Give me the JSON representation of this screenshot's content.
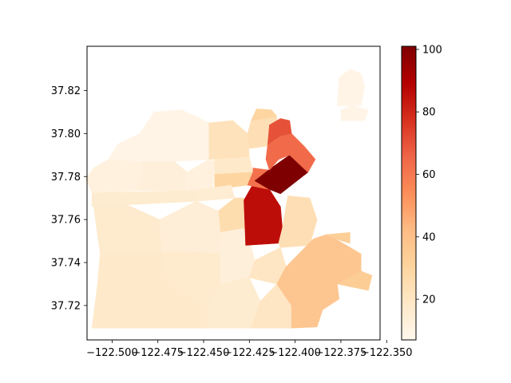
{
  "map": {
    "type": "choropleth",
    "region": "",
    "x_axis": {
      "ticks": [
        -122.5,
        -122.475,
        -122.45,
        -122.425,
        -122.4,
        -122.375,
        -122.35
      ],
      "tick_labels": [
        "−122.500",
        "−122.475",
        "−122.450",
        "−122.425",
        "−122.400",
        "−122.375",
        "−122.350"
      ]
    },
    "y_axis": {
      "ticks": [
        37.72,
        37.74,
        37.76,
        37.78,
        37.8,
        37.82
      ],
      "tick_labels": [
        "37.72",
        "37.74",
        "37.76",
        "37.78",
        "37.80",
        "37.82"
      ]
    },
    "xlim": [
      -122.5137,
      -122.3536
    ],
    "ylim": [
      37.704,
      37.8406
    ],
    "colorbar": {
      "cmap": "OrRd",
      "range": [
        7,
        101
      ],
      "ticks": [
        20,
        40,
        60,
        80,
        100
      ],
      "tick_labels": [
        "20",
        "40",
        "60",
        "80",
        "100"
      ],
      "colors": [
        "#fff7ec",
        "#fee8c8",
        "#fdd49e",
        "#fdbb84",
        "#fc8d59",
        "#ef6548",
        "#d7301f",
        "#b30000",
        "#7f0000"
      ]
    },
    "regions": [
      {
        "id": "sunset-south",
        "value": 18,
        "poly": [
          [
            -122.511,
            37.7095
          ],
          [
            -122.472,
            37.7095
          ],
          [
            -122.472,
            37.735
          ],
          [
            -122.473,
            37.745
          ],
          [
            -122.5065,
            37.744
          ],
          [
            -122.508,
            37.73
          ]
        ]
      },
      {
        "id": "sunset-north",
        "value": 17,
        "poly": [
          [
            -122.5065,
            37.744
          ],
          [
            -122.473,
            37.745
          ],
          [
            -122.474,
            37.76
          ],
          [
            -122.495,
            37.768
          ],
          [
            -122.51,
            37.766
          ],
          [
            -122.5085,
            37.756
          ]
        ]
      },
      {
        "id": "golden-gate-park",
        "value": 16,
        "poly": [
          [
            -122.511,
            37.766
          ],
          [
            -122.454,
            37.7685
          ],
          [
            -122.456,
            37.7735
          ],
          [
            -122.511,
            37.7725
          ]
        ]
      },
      {
        "id": "outer-richmond",
        "value": 12,
        "poly": [
          [
            -122.511,
            37.7725
          ],
          [
            -122.485,
            37.7735
          ],
          [
            -122.483,
            37.787
          ],
          [
            -122.502,
            37.788
          ],
          [
            -122.51,
            37.784
          ],
          [
            -122.5145,
            37.779
          ]
        ]
      },
      {
        "id": "inner-richmond",
        "value": 13,
        "poly": [
          [
            -122.485,
            37.7735
          ],
          [
            -122.46,
            37.7735
          ],
          [
            -122.459,
            37.782
          ],
          [
            -122.466,
            37.787
          ],
          [
            -122.483,
            37.787
          ]
        ]
      },
      {
        "id": "presidio",
        "value": 9,
        "poly": [
          [
            -122.483,
            37.787
          ],
          [
            -122.466,
            37.787
          ],
          [
            -122.447,
            37.788
          ],
          [
            -122.447,
            37.805
          ],
          [
            -122.462,
            37.811
          ],
          [
            -122.477,
            37.81
          ],
          [
            -122.485,
            37.8
          ],
          [
            -122.497,
            37.795
          ],
          [
            -122.502,
            37.788
          ]
        ]
      },
      {
        "id": "presidio-heights",
        "value": 12,
        "poly": [
          [
            -122.46,
            37.7735
          ],
          [
            -122.445,
            37.774
          ],
          [
            -122.444,
            37.787
          ],
          [
            -122.447,
            37.788
          ],
          [
            -122.459,
            37.782
          ]
        ]
      },
      {
        "id": "marina",
        "value": 22,
        "poly": [
          [
            -122.447,
            37.788
          ],
          [
            -122.425,
            37.789
          ],
          [
            -122.426,
            37.8
          ],
          [
            -122.434,
            37.806
          ],
          [
            -122.447,
            37.805
          ]
        ]
      },
      {
        "id": "pacific-heights",
        "value": 18,
        "poly": [
          [
            -122.444,
            37.781
          ],
          [
            -122.423,
            37.782
          ],
          [
            -122.425,
            37.789
          ],
          [
            -122.444,
            37.788
          ]
        ]
      },
      {
        "id": "russian-hill",
        "value": 24,
        "poly": [
          [
            -122.425,
            37.793
          ],
          [
            -122.409,
            37.795
          ],
          [
            -122.41,
            37.808
          ],
          [
            -122.424,
            37.806
          ],
          [
            -122.426,
            37.8
          ]
        ]
      },
      {
        "id": "fishermans-wharf",
        "value": 30,
        "poly": [
          [
            -122.424,
            37.806
          ],
          [
            -122.41,
            37.808
          ],
          [
            -122.413,
            37.811
          ],
          [
            -122.421,
            37.8115
          ]
        ]
      },
      {
        "id": "japantown",
        "value": 30,
        "poly": [
          [
            -122.444,
            37.774
          ],
          [
            -122.426,
            37.776
          ],
          [
            -122.423,
            37.782
          ],
          [
            -122.444,
            37.781
          ]
        ]
      },
      {
        "id": "haight",
        "value": 15,
        "poly": [
          [
            -122.454,
            37.7685
          ],
          [
            -122.433,
            37.77
          ],
          [
            -122.435,
            37.776
          ],
          [
            -122.456,
            37.7735
          ]
        ]
      },
      {
        "id": "castro",
        "value": 26,
        "poly": [
          [
            -122.441,
            37.754
          ],
          [
            -122.427,
            37.756
          ],
          [
            -122.426,
            37.77
          ],
          [
            -122.433,
            37.77
          ],
          [
            -122.442,
            37.764
          ]
        ]
      },
      {
        "id": "twin-peaks",
        "value": 14,
        "poly": [
          [
            -122.46,
            37.745
          ],
          [
            -122.441,
            37.744
          ],
          [
            -122.441,
            37.754
          ],
          [
            -122.442,
            37.764
          ],
          [
            -122.454,
            37.7685
          ],
          [
            -122.474,
            37.76
          ],
          [
            -122.473,
            37.745
          ]
        ]
      },
      {
        "id": "west-portal",
        "value": 17,
        "poly": [
          [
            -122.472,
            37.735
          ],
          [
            -122.46,
            37.725
          ],
          [
            -122.448,
            37.72
          ],
          [
            -122.441,
            37.73
          ],
          [
            -122.441,
            37.744
          ],
          [
            -122.46,
            37.745
          ],
          [
            -122.473,
            37.745
          ]
        ]
      },
      {
        "id": "ingleside",
        "value": 18,
        "poly": [
          [
            -122.472,
            37.7095
          ],
          [
            -122.448,
            37.7095
          ],
          [
            -122.448,
            37.72
          ],
          [
            -122.46,
            37.725
          ],
          [
            -122.472,
            37.735
          ]
        ]
      },
      {
        "id": "glen-park",
        "value": 13,
        "poly": [
          [
            -122.441,
            37.73
          ],
          [
            -122.425,
            37.733
          ],
          [
            -122.422,
            37.741
          ],
          [
            -122.427,
            37.756
          ],
          [
            -122.441,
            37.754
          ],
          [
            -122.441,
            37.744
          ]
        ]
      },
      {
        "id": "excelsior",
        "value": 16,
        "poly": [
          [
            -122.448,
            37.7095
          ],
          [
            -122.424,
            37.7095
          ],
          [
            -122.419,
            37.722
          ],
          [
            -122.425,
            37.733
          ],
          [
            -122.441,
            37.73
          ],
          [
            -122.448,
            37.72
          ]
        ]
      },
      {
        "id": "visitacion-valley",
        "value": 20,
        "poly": [
          [
            -122.424,
            37.7095
          ],
          [
            -122.402,
            37.7095
          ],
          [
            -122.402,
            37.72
          ],
          [
            -122.41,
            37.73
          ],
          [
            -122.419,
            37.722
          ]
        ]
      },
      {
        "id": "bernal-heights",
        "value": 20,
        "poly": [
          [
            -122.425,
            37.733
          ],
          [
            -122.41,
            37.73
          ],
          [
            -122.405,
            37.738
          ],
          [
            -122.408,
            37.747
          ],
          [
            -122.422,
            37.741
          ]
        ]
      },
      {
        "id": "mission",
        "value": 86,
        "poly": [
          [
            -122.427,
            37.748
          ],
          [
            -122.409,
            37.749
          ],
          [
            -122.407,
            37.756
          ],
          [
            -122.408,
            37.766
          ],
          [
            -122.414,
            37.774
          ],
          [
            -122.422,
            37.778
          ],
          [
            -122.428,
            37.769
          ]
        ]
      },
      {
        "id": "potrero-hill",
        "value": 24,
        "poly": [
          [
            -122.408,
            37.747
          ],
          [
            -122.392,
            37.748
          ],
          [
            -122.388,
            37.76
          ],
          [
            -122.392,
            37.77
          ],
          [
            -122.404,
            37.771
          ],
          [
            -122.407,
            37.756
          ],
          [
            -122.409,
            37.749
          ]
        ]
      },
      {
        "id": "bayview",
        "value": 37,
        "poly": [
          [
            -122.402,
            37.7095
          ],
          [
            -122.388,
            37.71
          ],
          [
            -122.385,
            37.718
          ],
          [
            -122.376,
            37.723
          ],
          [
            -122.377,
            37.73
          ],
          [
            -122.364,
            37.736
          ],
          [
            -122.364,
            37.744
          ],
          [
            -122.378,
            37.751
          ],
          [
            -122.383,
            37.753
          ],
          [
            -122.39,
            37.751
          ],
          [
            -122.405,
            37.738
          ],
          [
            -122.41,
            37.73
          ],
          [
            -122.402,
            37.72
          ]
        ]
      },
      {
        "id": "hunters-point",
        "value": 34,
        "poly": [
          [
            -122.377,
            37.73
          ],
          [
            -122.36,
            37.727
          ],
          [
            -122.358,
            37.734
          ],
          [
            -122.364,
            37.736
          ]
        ]
      },
      {
        "id": "dogpatch",
        "value": 33,
        "poly": [
          [
            -122.383,
            37.753
          ],
          [
            -122.37,
            37.754
          ],
          [
            -122.37,
            37.749
          ],
          [
            -122.378,
            37.751
          ]
        ]
      },
      {
        "id": "western-addition",
        "value": 62,
        "poly": [
          [
            -122.426,
            37.776
          ],
          [
            -122.414,
            37.774
          ],
          [
            -122.414,
            37.783
          ],
          [
            -122.423,
            37.784
          ],
          [
            -122.423,
            37.782
          ]
        ]
      },
      {
        "id": "tenderloin-soma",
        "value": 101,
        "poly": [
          [
            -122.422,
            37.778
          ],
          [
            -122.414,
            37.774
          ],
          [
            -122.408,
            37.772
          ],
          [
            -122.393,
            37.782
          ],
          [
            -122.403,
            37.79
          ],
          [
            -122.413,
            37.784
          ]
        ]
      },
      {
        "id": "financial-district",
        "value": 64,
        "poly": [
          [
            -122.414,
            37.783
          ],
          [
            -122.409,
            37.788
          ],
          [
            -122.403,
            37.79
          ],
          [
            -122.393,
            37.782
          ],
          [
            -122.389,
            37.788
          ],
          [
            -122.395,
            37.794
          ],
          [
            -122.402,
            37.8
          ],
          [
            -122.408,
            37.799
          ],
          [
            -122.415,
            37.795
          ],
          [
            -122.416,
            37.788
          ]
        ]
      },
      {
        "id": "north-beach",
        "value": 70,
        "poly": [
          [
            -122.415,
            37.795
          ],
          [
            -122.408,
            37.799
          ],
          [
            -122.402,
            37.8
          ],
          [
            -122.403,
            37.806
          ],
          [
            -122.408,
            37.807
          ],
          [
            -122.414,
            37.804
          ]
        ]
      },
      {
        "id": "treasure-island",
        "value": 9,
        "poly": [
          [
            -122.377,
            37.813
          ],
          [
            -122.364,
            37.813
          ],
          [
            -122.362,
            37.822
          ],
          [
            -122.364,
            37.828
          ],
          [
            -122.37,
            37.83
          ],
          [
            -122.376,
            37.826
          ]
        ]
      },
      {
        "id": "yerba-buena",
        "value": 9,
        "poly": [
          [
            -122.375,
            37.806
          ],
          [
            -122.362,
            37.806
          ],
          [
            -122.36,
            37.811
          ],
          [
            -122.369,
            37.813
          ],
          [
            -122.375,
            37.811
          ]
        ]
      }
    ]
  }
}
